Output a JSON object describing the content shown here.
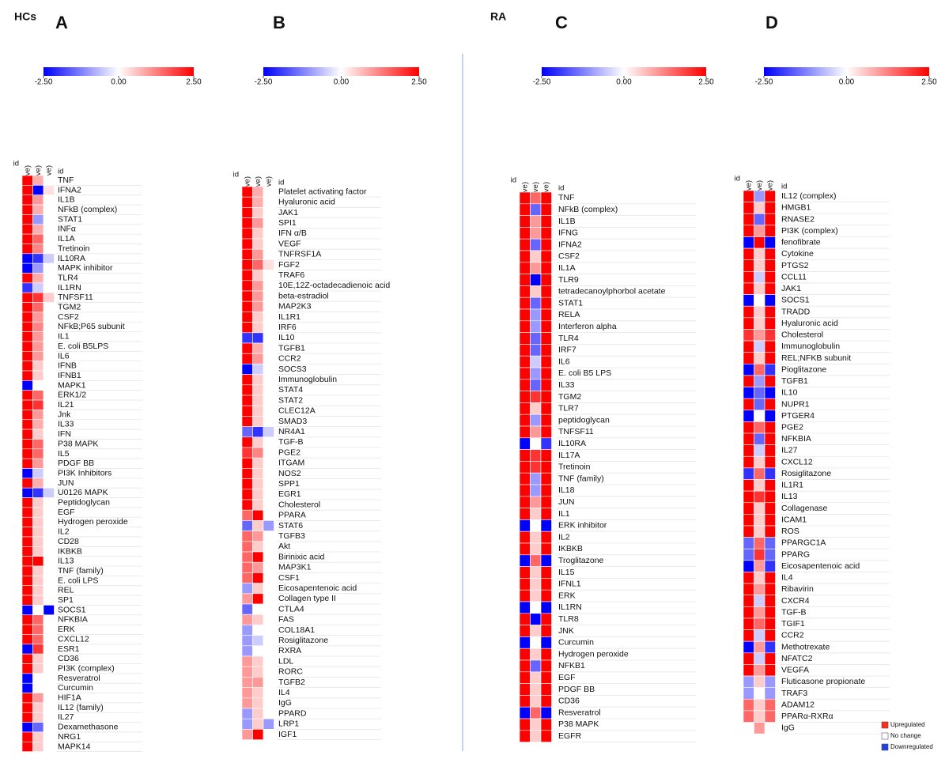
{
  "chart_data": [
    {
      "type": "heatmap",
      "group": "HCs",
      "title": "A",
      "id_label": "id",
      "columns": [
        "i.HC (-ve vs +ve)",
        "ii. HC (ttt vs +ve)",
        "iii. HC (ttt vs -ve)"
      ],
      "zlim": [
        -2.5,
        2.5
      ],
      "zticks": [
        {
          "value": -2.5,
          "label": "-2.50"
        },
        {
          "value": 0,
          "label": "0.00"
        },
        {
          "value": 2.5,
          "label": "2.50"
        }
      ],
      "colormap": [
        "#0000ff",
        "#ffffff",
        "#ff0000"
      ],
      "rows": [
        "TNF",
        "IFNA2",
        "IL1B",
        "NFkB (complex)",
        "STAT1",
        "INFα",
        "IL1A",
        "Tretinoin",
        "IL10RA",
        "MAPK inhibitor",
        "TLR4",
        "IL1RN",
        "TNFSF11",
        "TGM2",
        "CSF2",
        "NFkB;P65 subunit",
        "IL1",
        "E. coli B5LPS",
        "IL6",
        "IFNB",
        "IFNB1",
        "MAPK1",
        "ERK1/2",
        "IL21",
        "Jnk",
        "IL33",
        "IFN",
        "P38 MAPK",
        "IL5",
        "PDGF BB",
        "PI3K Inhibitors",
        "JUN",
        "U0126 MAPK",
        "Peptidoglycan",
        "EGF",
        "Hydrogen peroxide",
        "IL2",
        "CD28",
        "IKBKB",
        "IL13",
        "TNF (family)",
        "E. coli LPS",
        "REL",
        "SP1",
        "SOCS1",
        "NFKBIA",
        "ERK",
        "CXCL12",
        "ESR1",
        "CD36",
        "PI3K (complex)",
        "Resveratrol",
        "Curcumin",
        "HIF1A",
        "IL12 (family)",
        "IL27",
        "Dexamethasone",
        "NRG1",
        "MAPK14"
      ],
      "values": [
        [
          2.5,
          0.8,
          0
        ],
        [
          2.5,
          -2.5,
          0.3
        ],
        [
          2.5,
          1,
          0
        ],
        [
          2.5,
          0.8,
          0
        ],
        [
          2.5,
          -1,
          0
        ],
        [
          2.5,
          0.8,
          0
        ],
        [
          2.5,
          1.5,
          0
        ],
        [
          2.5,
          1.2,
          0
        ],
        [
          -2.5,
          -2,
          -0.5
        ],
        [
          -2.5,
          -1,
          0
        ],
        [
          2.5,
          0.8,
          0
        ],
        [
          -2,
          -0.5,
          0
        ],
        [
          2.5,
          2,
          0.5
        ],
        [
          2.5,
          1.5,
          0
        ],
        [
          2.5,
          1,
          0
        ],
        [
          2.5,
          1.2,
          0
        ],
        [
          2.5,
          1,
          0
        ],
        [
          2.5,
          1,
          0
        ],
        [
          2.5,
          1,
          0
        ],
        [
          2.5,
          0.5,
          0
        ],
        [
          2.5,
          0.5,
          0
        ],
        [
          -2.5,
          0,
          0
        ],
        [
          2.5,
          1.5,
          0
        ],
        [
          2.5,
          2,
          0
        ],
        [
          2.5,
          1,
          0
        ],
        [
          2.5,
          0.8,
          0
        ],
        [
          2.5,
          0.5,
          0
        ],
        [
          2.5,
          1.5,
          0
        ],
        [
          2.5,
          1.5,
          0
        ],
        [
          2.5,
          1,
          0
        ],
        [
          -2.5,
          -0.5,
          0
        ],
        [
          2.5,
          0.8,
          0
        ],
        [
          -2.5,
          -2,
          -0.5
        ],
        [
          2.5,
          0.5,
          0
        ],
        [
          2.5,
          0.5,
          0
        ],
        [
          2.5,
          0.5,
          0
        ],
        [
          2.5,
          0.5,
          0
        ],
        [
          2.5,
          0.5,
          0
        ],
        [
          2.5,
          0.5,
          0
        ],
        [
          2.5,
          2.5,
          0
        ],
        [
          2.5,
          0.5,
          0
        ],
        [
          2.5,
          0.5,
          0
        ],
        [
          2.5,
          0.5,
          0
        ],
        [
          2.5,
          0.5,
          0
        ],
        [
          -2.5,
          0,
          -2.5
        ],
        [
          2.5,
          1.5,
          0
        ],
        [
          2.5,
          1.5,
          0
        ],
        [
          2.5,
          1.5,
          0
        ],
        [
          -2.5,
          2,
          0
        ],
        [
          2.5,
          0.5,
          0
        ],
        [
          2.5,
          0.5,
          0
        ],
        [
          -2.5,
          0,
          0
        ],
        [
          -2.5,
          0,
          0
        ],
        [
          2.5,
          1,
          0
        ],
        [
          2.5,
          0.5,
          0
        ],
        [
          2.5,
          0.5,
          0
        ],
        [
          -2.5,
          -1.5,
          0
        ],
        [
          2.5,
          0.5,
          0
        ],
        [
          2.5,
          0.5,
          0
        ]
      ]
    },
    {
      "type": "heatmap",
      "title": "B",
      "id_label": "id",
      "columns": [
        "i.HC (-ve vs +ve)",
        "ii. HC (ttt vs +ve)",
        "iii. HC (ttt vs -ve)"
      ],
      "zlim": [
        -2.5,
        2.5
      ],
      "zticks": [
        {
          "value": -2.5,
          "label": "-2.50"
        },
        {
          "value": 0,
          "label": "0.00"
        },
        {
          "value": 2.5,
          "label": "2.50"
        }
      ],
      "colormap": [
        "#0000ff",
        "#ffffff",
        "#ff0000"
      ],
      "rows": [
        "Platelet activating factor",
        "Hyaluronic acid",
        "JAK1",
        "SPI1",
        "IFN α/B",
        "VEGF",
        "TNFRSF1A",
        "FGF2",
        "TRAF6",
        "10E,12Z-octadecadienoic acid",
        "beta-estradiol",
        "MAP2K3",
        "IL1R1",
        "IRF6",
        "IL10",
        "TGFB1",
        "CCR2",
        "SOCS3",
        "Immunoglobulin",
        "STAT4",
        "STAT2",
        "CLEC12A",
        "SMAD3",
        "NR4A1",
        "TGF-B",
        "PGE2",
        "ITGAM",
        "NOS2",
        "SPP1",
        "EGR1",
        "Cholesterol",
        "PPARA",
        "STAT6",
        "TGFB3",
        "Akt",
        "Birinixic acid",
        "MAP3K1",
        "CSF1",
        "Eicosapentenoic acid",
        "Collagen type II",
        "CTLA4",
        "FAS",
        "COL18A1",
        "Rosiglitazone",
        "RXRA",
        "LDL",
        "RORC",
        "TGFB2",
        "IL4",
        "IgG",
        "PPARD",
        "LRP1",
        "IGF1"
      ],
      "values": [
        [
          2.5,
          0.8,
          0
        ],
        [
          2.5,
          0.8,
          0
        ],
        [
          2.5,
          0.5,
          0
        ],
        [
          2.5,
          1,
          0
        ],
        [
          2.5,
          0.5,
          0
        ],
        [
          2.5,
          0.5,
          0
        ],
        [
          2.5,
          1,
          0
        ],
        [
          2.5,
          1.5,
          0.3
        ],
        [
          2.5,
          0.5,
          0
        ],
        [
          2.5,
          1,
          0
        ],
        [
          2.5,
          1,
          0
        ],
        [
          2.5,
          1,
          0
        ],
        [
          2.5,
          0.5,
          0
        ],
        [
          2.5,
          0.5,
          0
        ],
        [
          -2,
          -2,
          0
        ],
        [
          2.5,
          0.8,
          0
        ],
        [
          2.5,
          1,
          0
        ],
        [
          -2.5,
          -0.5,
          0
        ],
        [
          2.5,
          0.5,
          0
        ],
        [
          2.5,
          0.5,
          0
        ],
        [
          2.5,
          0.5,
          0
        ],
        [
          2.5,
          0.5,
          0
        ],
        [
          2.5,
          0.5,
          0
        ],
        [
          -1.5,
          -2,
          -0.5
        ],
        [
          2.5,
          0.5,
          0
        ],
        [
          2,
          1.2,
          0
        ],
        [
          2.5,
          0.5,
          0
        ],
        [
          2.5,
          0.5,
          0
        ],
        [
          2.5,
          0.5,
          0
        ],
        [
          2.5,
          0.5,
          0
        ],
        [
          2.5,
          0.5,
          0
        ],
        [
          1.5,
          2.5,
          0
        ],
        [
          -1.5,
          0.5,
          -1
        ],
        [
          1.5,
          1,
          0
        ],
        [
          1.5,
          0.5,
          0
        ],
        [
          1.5,
          2.5,
          0
        ],
        [
          1.5,
          1,
          0
        ],
        [
          1.5,
          2.5,
          0
        ],
        [
          -1,
          0.5,
          0
        ],
        [
          1,
          2.5,
          0
        ],
        [
          -1.5,
          0,
          0
        ],
        [
          1,
          0.5,
          0
        ],
        [
          -1,
          0,
          0
        ],
        [
          -1,
          -0.5,
          0
        ],
        [
          -1,
          0,
          0
        ],
        [
          1,
          0.5,
          0
        ],
        [
          1,
          0.5,
          0
        ],
        [
          1,
          1,
          0
        ],
        [
          1,
          0.5,
          0
        ],
        [
          1,
          0.5,
          0
        ],
        [
          -1,
          0.5,
          0
        ],
        [
          -1,
          0.5,
          -1
        ],
        [
          1,
          2.5,
          0
        ]
      ]
    },
    {
      "type": "heatmap",
      "group": "RA",
      "title": "C",
      "id_label": "id",
      "columns": [
        "i. RA (-ve vs +ve)",
        "ii. RA (ttt vs +ve)",
        "iii. RA (ttt vs -ve)"
      ],
      "zlim": [
        -2.5,
        2.5
      ],
      "zticks": [
        {
          "value": -2.5,
          "label": "-2.50"
        },
        {
          "value": 0,
          "label": "0.00"
        },
        {
          "value": 2.5,
          "label": "2.50"
        }
      ],
      "colormap": [
        "#0000ff",
        "#ffffff",
        "#ff0000"
      ],
      "rows": [
        "TNF",
        "NFkB (complex)",
        "IL1B",
        "IFNG",
        "IFNA2",
        "CSF2",
        "IL1A",
        "TLR9",
        "tetradecanoylphorbol acetate",
        "STAT1",
        "RELA",
        "Interferon alpha",
        "TLR4",
        "IRF7",
        "IL6",
        "E. coli B5 LPS",
        "IL33",
        "TGM2",
        "TLR7",
        "peptidoglycan",
        "TNFSF11",
        "IL10RA",
        "IL17A",
        "Tretinoin",
        "TNF (family)",
        "IL18",
        "JUN",
        "IL1",
        "ERK inhibitor",
        "IL2",
        "IKBKB",
        "Troglitazone",
        "IL15",
        "IFNL1",
        "ERK",
        "IL1RN",
        "TLR8",
        "JNK",
        "Curcumin",
        "Hydrogen peroxide",
        "NFKB1",
        "EGF",
        "PDGF BB",
        "CD36",
        "Resveratrol",
        "P38 MAPK",
        "EGFR"
      ],
      "values": [
        [
          2.5,
          1.5,
          2.5
        ],
        [
          2.5,
          -1.5,
          2.5
        ],
        [
          2.5,
          1,
          2.5
        ],
        [
          2.5,
          1,
          2.5
        ],
        [
          2.5,
          -1.5,
          2.5
        ],
        [
          2.5,
          0.5,
          2.5
        ],
        [
          2.5,
          1,
          2.5
        ],
        [
          2.5,
          -2.5,
          2.5
        ],
        [
          2.5,
          0.5,
          2.5
        ],
        [
          2.5,
          -1.5,
          2.5
        ],
        [
          2.5,
          -1,
          2.5
        ],
        [
          2.5,
          -1,
          2.5
        ],
        [
          2.5,
          -1.5,
          2.5
        ],
        [
          2.5,
          -1.5,
          2.5
        ],
        [
          2.5,
          -0.5,
          2.5
        ],
        [
          2.5,
          -1,
          2.5
        ],
        [
          2.5,
          -1.5,
          2.5
        ],
        [
          2.5,
          2,
          2.5
        ],
        [
          2.5,
          0.5,
          2.5
        ],
        [
          2.5,
          -1,
          2.5
        ],
        [
          2.5,
          1,
          2.5
        ],
        [
          -2.5,
          0,
          -2
        ],
        [
          2.5,
          2,
          2.5
        ],
        [
          2.5,
          2,
          2.5
        ],
        [
          2.5,
          -1,
          2.5
        ],
        [
          2.5,
          -1,
          2.5
        ],
        [
          2.5,
          1,
          2.5
        ],
        [
          2.5,
          0.5,
          2.5
        ],
        [
          -2.5,
          0,
          -2.5
        ],
        [
          2.5,
          0.5,
          2.5
        ],
        [
          2.5,
          0.5,
          2.5
        ],
        [
          -2.5,
          1.5,
          -2.5
        ],
        [
          2.5,
          0.5,
          2.5
        ],
        [
          2.5,
          0.5,
          2.5
        ],
        [
          2.5,
          0.5,
          2.5
        ],
        [
          -2.5,
          0,
          -2.5
        ],
        [
          2.5,
          -2.5,
          2.5
        ],
        [
          2.5,
          0.5,
          2.5
        ],
        [
          -2.5,
          0,
          -2.5
        ],
        [
          2.5,
          0.5,
          2.5
        ],
        [
          2.5,
          -1.5,
          2.5
        ],
        [
          2.5,
          0.5,
          2.5
        ],
        [
          2.5,
          0.5,
          2.5
        ],
        [
          2.5,
          0.5,
          2.5
        ],
        [
          -2.5,
          1.5,
          -2.5
        ],
        [
          2.5,
          0.5,
          2.5
        ],
        [
          2.5,
          0.5,
          2.5
        ]
      ]
    },
    {
      "type": "heatmap",
      "title": "D",
      "id_label": "id",
      "columns": [
        "i. RA (-ve vs+ve)",
        "ii. RA (ttt vs +ve)",
        "iii. RA (ttt vs -ve)"
      ],
      "zlim": [
        -2.5,
        2.5
      ],
      "zticks": [
        {
          "value": -2.5,
          "label": "-2.50"
        },
        {
          "value": 0,
          "label": "0.00"
        },
        {
          "value": 2.5,
          "label": "2.50"
        }
      ],
      "colormap": [
        "#0000ff",
        "#ffffff",
        "#ff0000"
      ],
      "rows": [
        "IL12 (complex)",
        "HMGB1",
        "RNASE2",
        "PI3K (complex)",
        "fenofibrate",
        "Cytokine",
        "PTGS2",
        "CCL11",
        "JAK1",
        "SOCS1",
        "TRADD",
        "Hyaluronic acid",
        "Cholesterol",
        "Immunoglobulin",
        "REL;NFKB subunit",
        "Pioglitazone",
        "TGFB1",
        "IL10",
        "NUPR1",
        "PTGER4",
        "PGE2",
        "NFKBIA",
        "IL27",
        "CXCL12",
        "Rosiglitazone",
        "IL1R1",
        "IL13",
        "Collagenase",
        "ICAM1",
        "ROS",
        "PPARGC1A",
        "PPARG",
        "Eicosapentenoic acid",
        "IL4",
        "Ribavirin",
        "CXCR4",
        "TGF-B",
        "TGIF1",
        "CCR2",
        "Methotrexate",
        "NFATC2",
        "VEGFA",
        "Fluticasone propionate",
        "TRAF3",
        "ADAM12",
        "PPARα-RXRα",
        "IgG"
      ],
      "values": [
        [
          2.5,
          -1,
          2.5
        ],
        [
          2.5,
          0.5,
          2.5
        ],
        [
          2.5,
          -1.5,
          2.5
        ],
        [
          2.5,
          1,
          2.5
        ],
        [
          -2.5,
          2.5,
          -2.5
        ],
        [
          2.5,
          0.5,
          2.5
        ],
        [
          2.5,
          0.5,
          2.5
        ],
        [
          2.5,
          -0.5,
          2.5
        ],
        [
          2.5,
          0.5,
          2.5
        ],
        [
          -2.5,
          0,
          -2.5
        ],
        [
          2.5,
          0.5,
          2.5
        ],
        [
          2.5,
          0.5,
          2.5
        ],
        [
          2,
          1,
          2
        ],
        [
          2.5,
          -0.5,
          2.5
        ],
        [
          2.5,
          0.5,
          2.5
        ],
        [
          -2.5,
          1.5,
          -2
        ],
        [
          2.5,
          -1,
          2.5
        ],
        [
          -2.5,
          -1.5,
          -2.5
        ],
        [
          2.5,
          -1.5,
          2.5
        ],
        [
          -2.5,
          0,
          -2.5
        ],
        [
          2.5,
          1.5,
          2.5
        ],
        [
          2.5,
          -1.5,
          2.5
        ],
        [
          2.5,
          -0.5,
          2.5
        ],
        [
          2.5,
          0.5,
          2.5
        ],
        [
          -2,
          1.5,
          -2
        ],
        [
          2.5,
          0.5,
          2.5
        ],
        [
          2.5,
          2,
          2.5
        ],
        [
          2.5,
          0.5,
          2.5
        ],
        [
          2.5,
          0.5,
          2.5
        ],
        [
          2.5,
          0.5,
          2.5
        ],
        [
          -1.5,
          1.5,
          -1.5
        ],
        [
          -1.5,
          2,
          -1.5
        ],
        [
          -2.5,
          1,
          -2
        ],
        [
          2.5,
          0.5,
          2.5
        ],
        [
          2.5,
          1,
          2.5
        ],
        [
          2.5,
          -0.5,
          2.5
        ],
        [
          2.5,
          1,
          2.5
        ],
        [
          2.5,
          1.5,
          2.5
        ],
        [
          2.5,
          -0.5,
          2.5
        ],
        [
          -2.5,
          1,
          -2
        ],
        [
          2.5,
          -0.5,
          2.5
        ],
        [
          2.5,
          1,
          2.5
        ],
        [
          -1,
          0.5,
          -1
        ],
        [
          -1,
          0,
          -1
        ],
        [
          1.5,
          0.5,
          1.5
        ],
        [
          1.5,
          0.5,
          1.5
        ],
        [
          null,
          1,
          null
        ]
      ],
      "legend": [
        {
          "label": "Upregulated",
          "color": "#ff2a1a"
        },
        {
          "label": "No change",
          "color": "#ffffff"
        },
        {
          "label": "Downregulated",
          "color": "#1f3fe0"
        }
      ]
    }
  ]
}
